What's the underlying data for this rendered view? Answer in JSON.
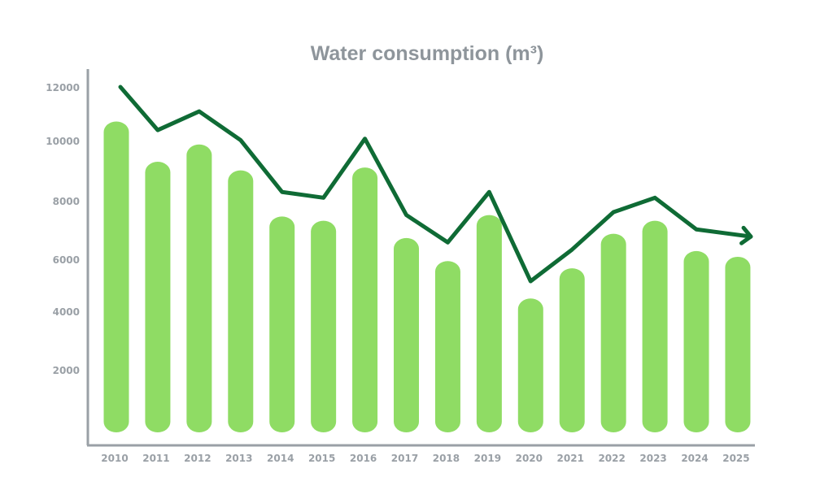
{
  "chart_data": {
    "type": "bar",
    "title": "Water consumption (m³)",
    "xlabel": "",
    "ylabel": "",
    "categories": [
      "2010",
      "2011",
      "2012",
      "2013",
      "2014",
      "2015",
      "2016",
      "2017",
      "2018",
      "2019",
      "2020",
      "2021",
      "2022",
      "2023",
      "2024",
      "2025"
    ],
    "bar_values": [
      10800,
      9400,
      10000,
      9100,
      7500,
      7350,
      9200,
      6750,
      5950,
      7550,
      4650,
      5700,
      6900,
      7350,
      6300,
      6100
    ],
    "line_values": [
      12000,
      10500,
      11150,
      10150,
      8350,
      8150,
      10200,
      7550,
      6600,
      8350,
      5250,
      6350,
      7650,
      8150,
      7050,
      6800
    ],
    "yticks": [
      2000,
      4000,
      6000,
      8000,
      10000,
      12000
    ],
    "ylim": [
      0,
      12000
    ],
    "grid": false,
    "colors": {
      "bar": "#8fdc64",
      "line": "#0f6b35",
      "axis": "#9aa0a6"
    }
  }
}
